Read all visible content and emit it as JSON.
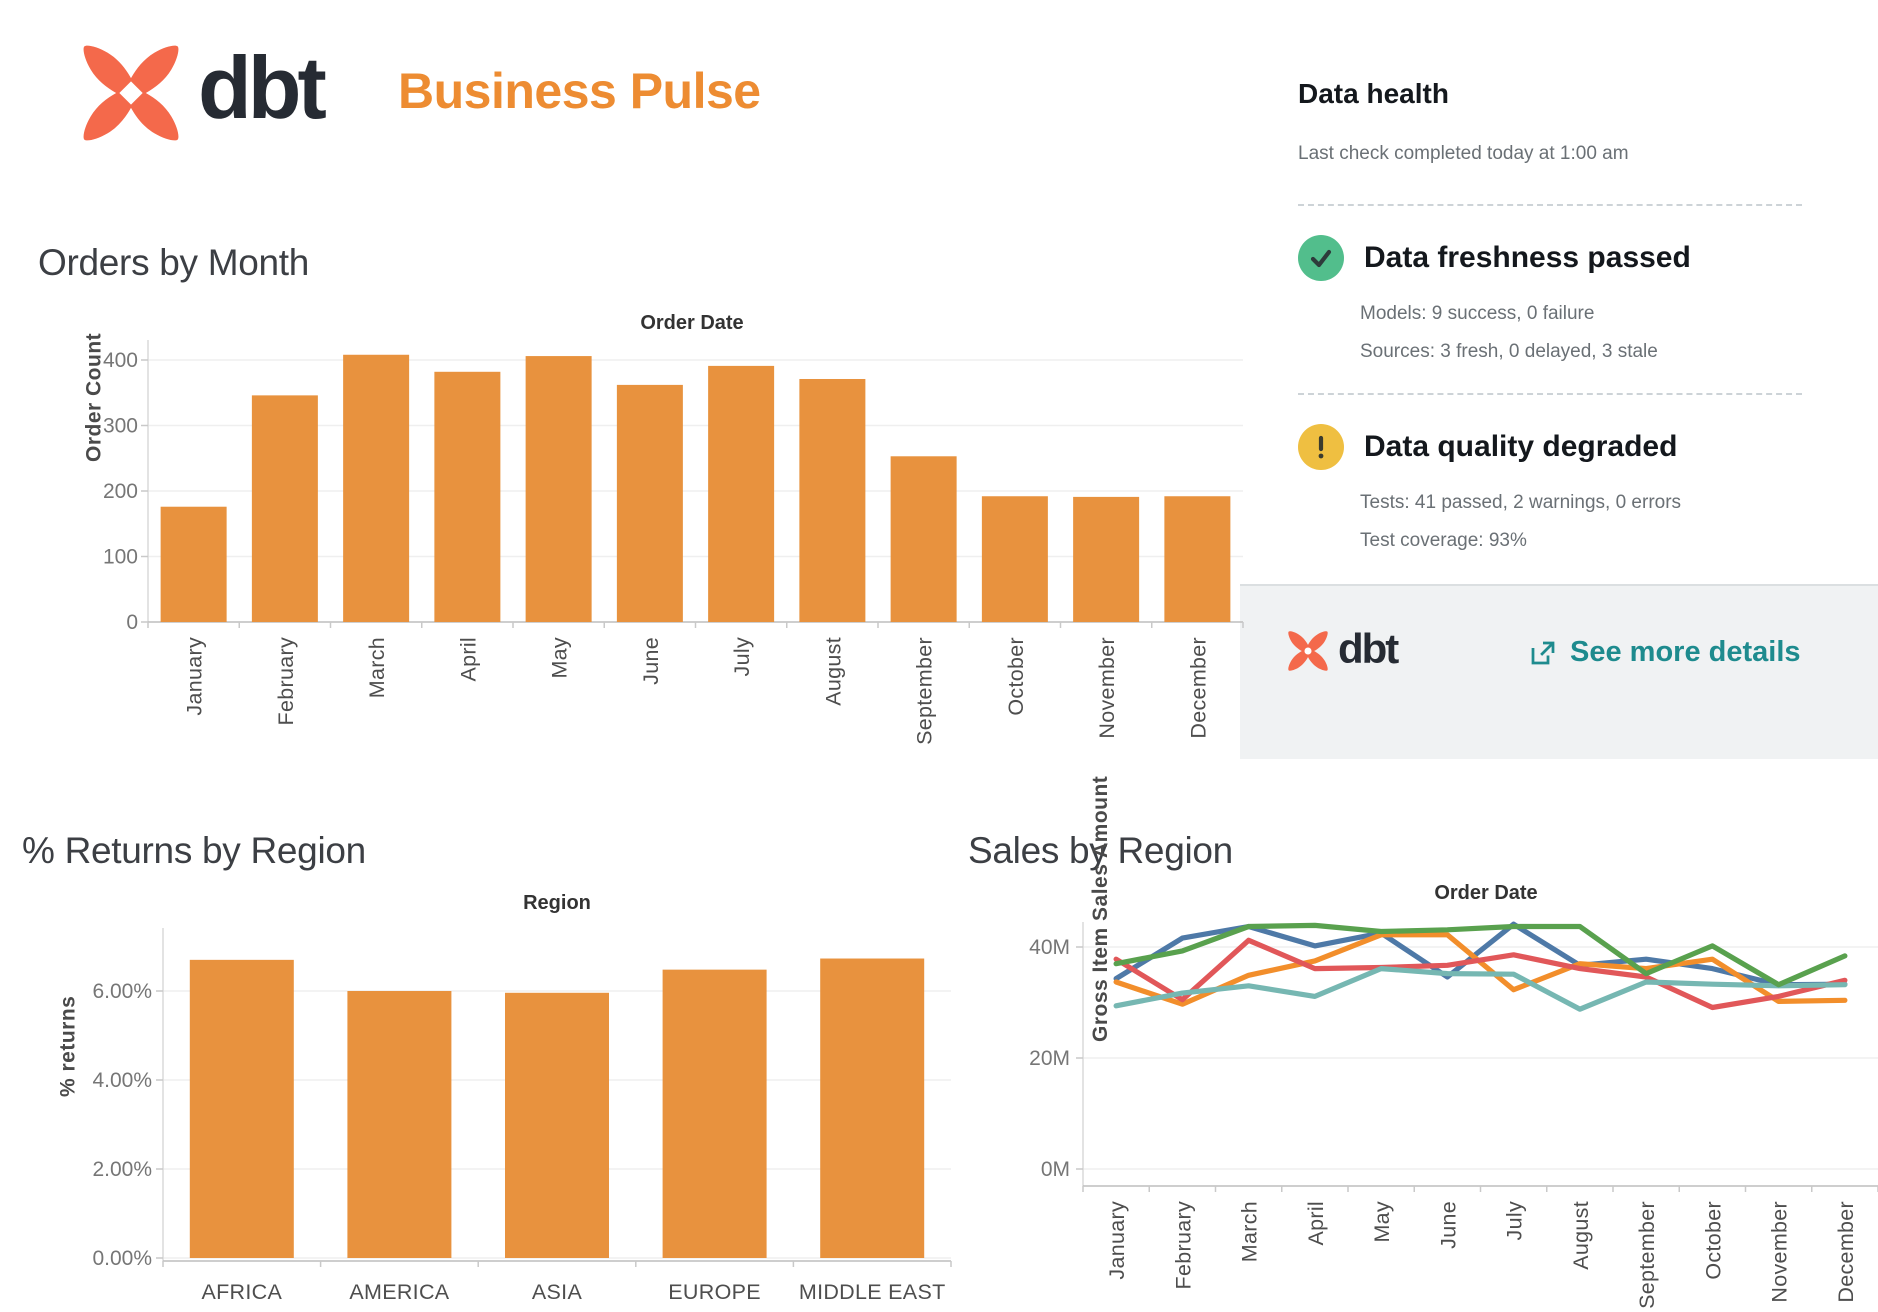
{
  "header": {
    "logo_text": "dbt",
    "title": "Business Pulse"
  },
  "data_health": {
    "title": "Data health",
    "subtitle": "Last check completed today at 1:00 am",
    "freshness": {
      "status": "Data freshness passed",
      "models": "Models: 9 success, 0 failure",
      "sources": "Sources: 3 fresh, 0 delayed, 3 stale",
      "icon": "check-icon",
      "icon_color": "#52BE8C"
    },
    "quality": {
      "status": "Data quality degraded",
      "tests": "Tests: 41 passed, 2 warnings, 0 errors",
      "coverage": "Test coverage: 93%",
      "icon": "exclamation-icon",
      "icon_color": "#EFBF41"
    },
    "footer": {
      "logo_text": "dbt",
      "link_label": "See more details",
      "link_icon": "external-link-icon",
      "link_color": "#1E8B8E"
    }
  },
  "colors": {
    "title_orange": "#ED8C32",
    "bar_orange": "#E8923E",
    "logo_coral": "#F4694B",
    "link_teal": "#1E8B8E",
    "success_green": "#52BE8C",
    "warning_yellow": "#EFBF41"
  },
  "chart_data": [
    {
      "type": "bar",
      "section_title": "Orders by Month",
      "axis_title": "Order Date",
      "xlabel": "",
      "ylabel": "Order Count",
      "categories": [
        "January",
        "February",
        "March",
        "April",
        "May",
        "June",
        "July",
        "August",
        "September",
        "October",
        "November",
        "December"
      ],
      "values": [
        176,
        346,
        408,
        382,
        406,
        362,
        391,
        371,
        253,
        192,
        191,
        192
      ],
      "yticks": [
        0,
        100,
        200,
        300,
        400
      ],
      "ytick_labels": [
        "0",
        "100",
        "200",
        "300",
        "400"
      ],
      "ylim": [
        0,
        430
      ],
      "grid": true,
      "legend": "none",
      "bar_color": "#E8923E"
    },
    {
      "type": "bar",
      "section_title": "% Returns by Region",
      "axis_title": "Region",
      "xlabel": "",
      "ylabel": "% returns",
      "categories": [
        "AFRICA",
        "AMERICA",
        "ASIA",
        "EUROPE",
        "MIDDLE EAST"
      ],
      "values": [
        6.7,
        6.0,
        5.96,
        6.48,
        6.73
      ],
      "yticks": [
        0,
        2,
        4,
        6
      ],
      "ytick_labels": [
        "0.00%",
        "2.00%",
        "4.00%",
        "6.00%"
      ],
      "ylim": [
        0,
        7.4
      ],
      "grid": true,
      "legend": "none",
      "bar_color": "#E8923E"
    },
    {
      "type": "line",
      "section_title": "Sales by Region",
      "axis_title": "Order Date",
      "xlabel": "",
      "ylabel": "Gross Item Sales Amount",
      "unit": "M",
      "categories": [
        "January",
        "February",
        "March",
        "April",
        "May",
        "June",
        "July",
        "August",
        "September",
        "October",
        "November",
        "December"
      ],
      "series": [
        {
          "name": "blue",
          "color": "#4E79A7",
          "values": [
            34.3,
            41.6,
            43.7,
            40.2,
            42.5,
            34.6,
            44.1,
            36.7,
            37.8,
            36.1,
            33.2,
            33.3
          ]
        },
        {
          "name": "orange",
          "color": "#F28E2B",
          "values": [
            33.7,
            29.7,
            34.9,
            37.5,
            42.2,
            42.2,
            32.3,
            37.0,
            36.1,
            37.8,
            30.2,
            30.4
          ]
        },
        {
          "name": "red",
          "color": "#E15759",
          "values": [
            37.8,
            30.5,
            41.2,
            36.1,
            36.3,
            36.7,
            38.6,
            36.1,
            34.6,
            29.1,
            31.1,
            34.0
          ]
        },
        {
          "name": "teal",
          "color": "#76B7B2",
          "values": [
            29.4,
            31.7,
            33.0,
            31.1,
            36.1,
            35.2,
            35.1,
            28.8,
            33.7,
            33.3,
            33.0,
            33.2
          ]
        },
        {
          "name": "green",
          "color": "#59A14E",
          "values": [
            37.0,
            39.3,
            43.7,
            43.9,
            42.8,
            43.1,
            43.7,
            43.7,
            35.2,
            40.2,
            33.2,
            38.4
          ]
        }
      ],
      "yticks": [
        0,
        20,
        40
      ],
      "ytick_labels": [
        "0M",
        "20M",
        "40M"
      ],
      "ylim": [
        0,
        44.5
      ],
      "grid": true,
      "legend": "none"
    }
  ]
}
